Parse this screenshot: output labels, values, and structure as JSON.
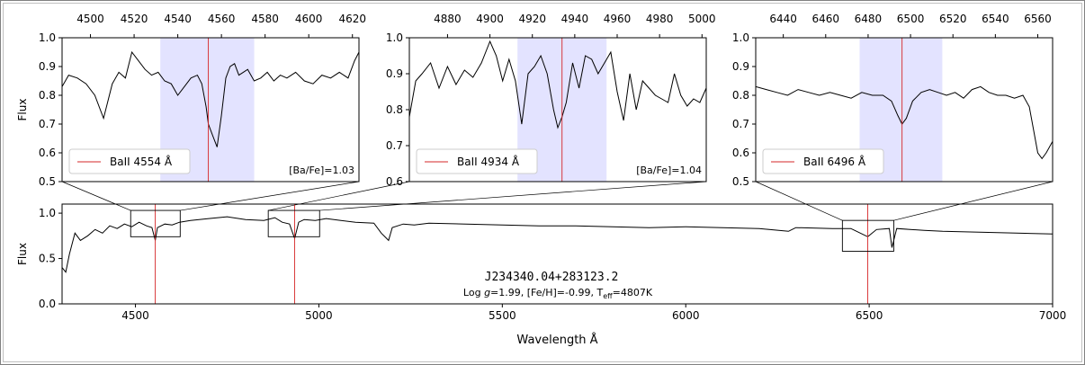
{
  "chart_data": [
    {
      "type": "line",
      "panel": "main",
      "title": "",
      "xlabel": "Wavelength Å",
      "ylabel": "Flux",
      "xlim": [
        4300,
        7000
      ],
      "ylim": [
        0.0,
        1.1
      ],
      "xticks": [
        4500,
        5000,
        5500,
        6000,
        6500,
        7000
      ],
      "yticks": [
        0.0,
        0.5,
        1.0
      ],
      "xtick_labels": [
        "4500",
        "5000",
        "5500",
        "6000",
        "6500",
        "7000"
      ],
      "ytick_labels": [
        "0.0",
        "0.5",
        "1.0"
      ],
      "star_name": "J234340.04+283123.2",
      "params_text": {
        "p1": "Log ",
        "g": "g",
        "p2": "=1.99, [Fe/H]=-0.99, T",
        "eff": "eff",
        "p3": "=4807K"
      },
      "lines_marked": [
        4554,
        4934,
        6496
      ],
      "zoom_boxes": [
        {
          "x": [
            4487,
            4622
          ],
          "y": [
            0.74,
            1.03
          ]
        },
        {
          "x": [
            4862,
            5002
          ],
          "y": [
            0.74,
            1.03
          ]
        },
        {
          "x": [
            6427,
            6567
          ],
          "y": [
            0.58,
            0.92
          ]
        }
      ],
      "series": [
        {
          "x": [
            4300,
            4310,
            4320,
            4335,
            4350,
            4370,
            4390,
            4410,
            4430,
            4450,
            4470,
            4490,
            4510,
            4530,
            4545,
            4554,
            4560,
            4580,
            4600,
            4620,
            4650,
            4700,
            4750,
            4800,
            4850,
            4880,
            4900,
            4920,
            4934,
            4945,
            4960,
            4990,
            5020,
            5060,
            5100,
            5150,
            5170,
            5190,
            5200,
            5230,
            5260,
            5300,
            5400,
            5500,
            5600,
            5700,
            5800,
            5900,
            6000,
            6100,
            6200,
            6280,
            6300,
            6400,
            6450,
            6496,
            6520,
            6555,
            6562,
            6575,
            6650,
            6700,
            6800,
            6900,
            7000
          ],
          "y": [
            0.4,
            0.35,
            0.55,
            0.78,
            0.7,
            0.75,
            0.82,
            0.78,
            0.86,
            0.83,
            0.88,
            0.85,
            0.9,
            0.86,
            0.84,
            0.7,
            0.84,
            0.88,
            0.87,
            0.9,
            0.92,
            0.94,
            0.96,
            0.93,
            0.92,
            0.95,
            0.9,
            0.88,
            0.72,
            0.9,
            0.93,
            0.92,
            0.94,
            0.92,
            0.9,
            0.89,
            0.78,
            0.7,
            0.84,
            0.88,
            0.87,
            0.89,
            0.88,
            0.87,
            0.86,
            0.86,
            0.85,
            0.84,
            0.85,
            0.84,
            0.83,
            0.8,
            0.84,
            0.83,
            0.83,
            0.74,
            0.82,
            0.83,
            0.62,
            0.83,
            0.81,
            0.8,
            0.79,
            0.78,
            0.77
          ]
        }
      ]
    },
    {
      "type": "line",
      "panel": "zoom-1",
      "xlabel": "",
      "ylabel": "Flux",
      "xlim": [
        4487,
        4623
      ],
      "ylim": [
        0.5,
        1.0
      ],
      "xticks": [
        4500,
        4520,
        4540,
        4560,
        4580,
        4600,
        4620
      ],
      "yticks": [
        0.5,
        0.6,
        0.7,
        0.8,
        0.9,
        1.0
      ],
      "xtick_labels": [
        "4500",
        "4520",
        "4540",
        "4560",
        "4580",
        "4600",
        "4620"
      ],
      "ytick_labels": [
        "0.5",
        "0.6",
        "0.7",
        "0.8",
        "0.9",
        "1.0"
      ],
      "line_center": 4554,
      "shade": [
        4532,
        4575
      ],
      "legend": "BaII 4554 Å",
      "annotation": "[Ba/Fe]=1.03",
      "series": [
        {
          "x": [
            4487,
            4490,
            4494,
            4498,
            4502,
            4506,
            4510,
            4513,
            4516,
            4519,
            4522,
            4525,
            4528,
            4531,
            4534,
            4537,
            4540,
            4543,
            4546,
            4549,
            4551,
            4553,
            4554,
            4556,
            4558,
            4560,
            4562,
            4564,
            4566,
            4568,
            4570,
            4572,
            4575,
            4578,
            4581,
            4584,
            4587,
            4590,
            4594,
            4598,
            4602,
            4606,
            4610,
            4614,
            4618,
            4621,
            4623
          ],
          "y": [
            0.83,
            0.87,
            0.86,
            0.84,
            0.8,
            0.72,
            0.84,
            0.88,
            0.86,
            0.95,
            0.92,
            0.89,
            0.87,
            0.88,
            0.85,
            0.84,
            0.8,
            0.83,
            0.86,
            0.87,
            0.84,
            0.76,
            0.7,
            0.66,
            0.62,
            0.73,
            0.86,
            0.9,
            0.91,
            0.87,
            0.88,
            0.89,
            0.85,
            0.86,
            0.88,
            0.85,
            0.87,
            0.86,
            0.88,
            0.85,
            0.84,
            0.87,
            0.86,
            0.88,
            0.86,
            0.92,
            0.95
          ]
        }
      ]
    },
    {
      "type": "line",
      "panel": "zoom-2",
      "xlabel": "",
      "ylabel": "",
      "xlim": [
        4862,
        5002
      ],
      "ylim": [
        0.6,
        1.0
      ],
      "xticks": [
        4880,
        4900,
        4920,
        4940,
        4960,
        4980,
        5000
      ],
      "yticks": [
        0.6,
        0.7,
        0.8,
        0.9,
        1.0
      ],
      "xtick_labels": [
        "4880",
        "4900",
        "4920",
        "4940",
        "4960",
        "4980",
        "5000"
      ],
      "ytick_labels": [
        "0.6",
        "0.7",
        "0.8",
        "0.9",
        "1.0"
      ],
      "line_center": 4934,
      "shade": [
        4913,
        4955
      ],
      "legend": "BaII 4934 Å",
      "annotation": "[Ba/Fe]=1.04",
      "series": [
        {
          "x": [
            4862,
            4865,
            4868,
            4872,
            4876,
            4880,
            4884,
            4888,
            4892,
            4896,
            4900,
            4903,
            4906,
            4909,
            4912,
            4915,
            4918,
            4921,
            4924,
            4927,
            4930,
            4932,
            4934,
            4936,
            4939,
            4942,
            4945,
            4948,
            4951,
            4954,
            4957,
            4960,
            4963,
            4966,
            4969,
            4972,
            4975,
            4978,
            4981,
            4984,
            4987,
            4990,
            4993,
            4996,
            4999,
            5002
          ],
          "y": [
            0.78,
            0.88,
            0.9,
            0.93,
            0.86,
            0.92,
            0.87,
            0.91,
            0.89,
            0.93,
            0.99,
            0.95,
            0.88,
            0.94,
            0.88,
            0.76,
            0.9,
            0.92,
            0.95,
            0.9,
            0.8,
            0.75,
            0.78,
            0.82,
            0.93,
            0.86,
            0.95,
            0.94,
            0.9,
            0.93,
            0.96,
            0.85,
            0.77,
            0.9,
            0.8,
            0.88,
            0.86,
            0.84,
            0.83,
            0.82,
            0.9,
            0.84,
            0.81,
            0.83,
            0.82,
            0.86
          ]
        }
      ]
    },
    {
      "type": "line",
      "panel": "zoom-3",
      "xlabel": "",
      "ylabel": "",
      "xlim": [
        6427,
        6567
      ],
      "ylim": [
        0.5,
        1.0
      ],
      "xticks": [
        6440,
        6460,
        6480,
        6500,
        6520,
        6540,
        6560
      ],
      "yticks": [
        0.5,
        0.6,
        0.7,
        0.8,
        0.9,
        1.0
      ],
      "xtick_labels": [
        "6440",
        "6460",
        "6480",
        "6500",
        "6520",
        "6540",
        "6560"
      ],
      "ytick_labels": [
        "0.5",
        "0.6",
        "0.7",
        "0.8",
        "0.9",
        "1.0"
      ],
      "line_center": 6496,
      "shade": [
        6476,
        6515
      ],
      "legend": "BaII 6496 Å",
      "annotation": "",
      "series": [
        {
          "x": [
            6427,
            6432,
            6437,
            6442,
            6447,
            6452,
            6457,
            6462,
            6467,
            6472,
            6477,
            6482,
            6487,
            6491,
            6494,
            6496,
            6498,
            6501,
            6505,
            6509,
            6513,
            6517,
            6521,
            6525,
            6529,
            6533,
            6537,
            6541,
            6545,
            6549,
            6553,
            6556,
            6558,
            6560,
            6562,
            6564,
            6567
          ],
          "y": [
            0.83,
            0.82,
            0.81,
            0.8,
            0.82,
            0.81,
            0.8,
            0.81,
            0.8,
            0.79,
            0.81,
            0.8,
            0.8,
            0.78,
            0.73,
            0.7,
            0.72,
            0.78,
            0.81,
            0.82,
            0.81,
            0.8,
            0.81,
            0.79,
            0.82,
            0.83,
            0.81,
            0.8,
            0.8,
            0.79,
            0.8,
            0.76,
            0.68,
            0.6,
            0.58,
            0.6,
            0.64
          ]
        }
      ]
    }
  ],
  "colors": {
    "spectrum": "#000000",
    "marker_line": "#d62728",
    "shade": "#e3e3ff",
    "frame": "#808080"
  }
}
